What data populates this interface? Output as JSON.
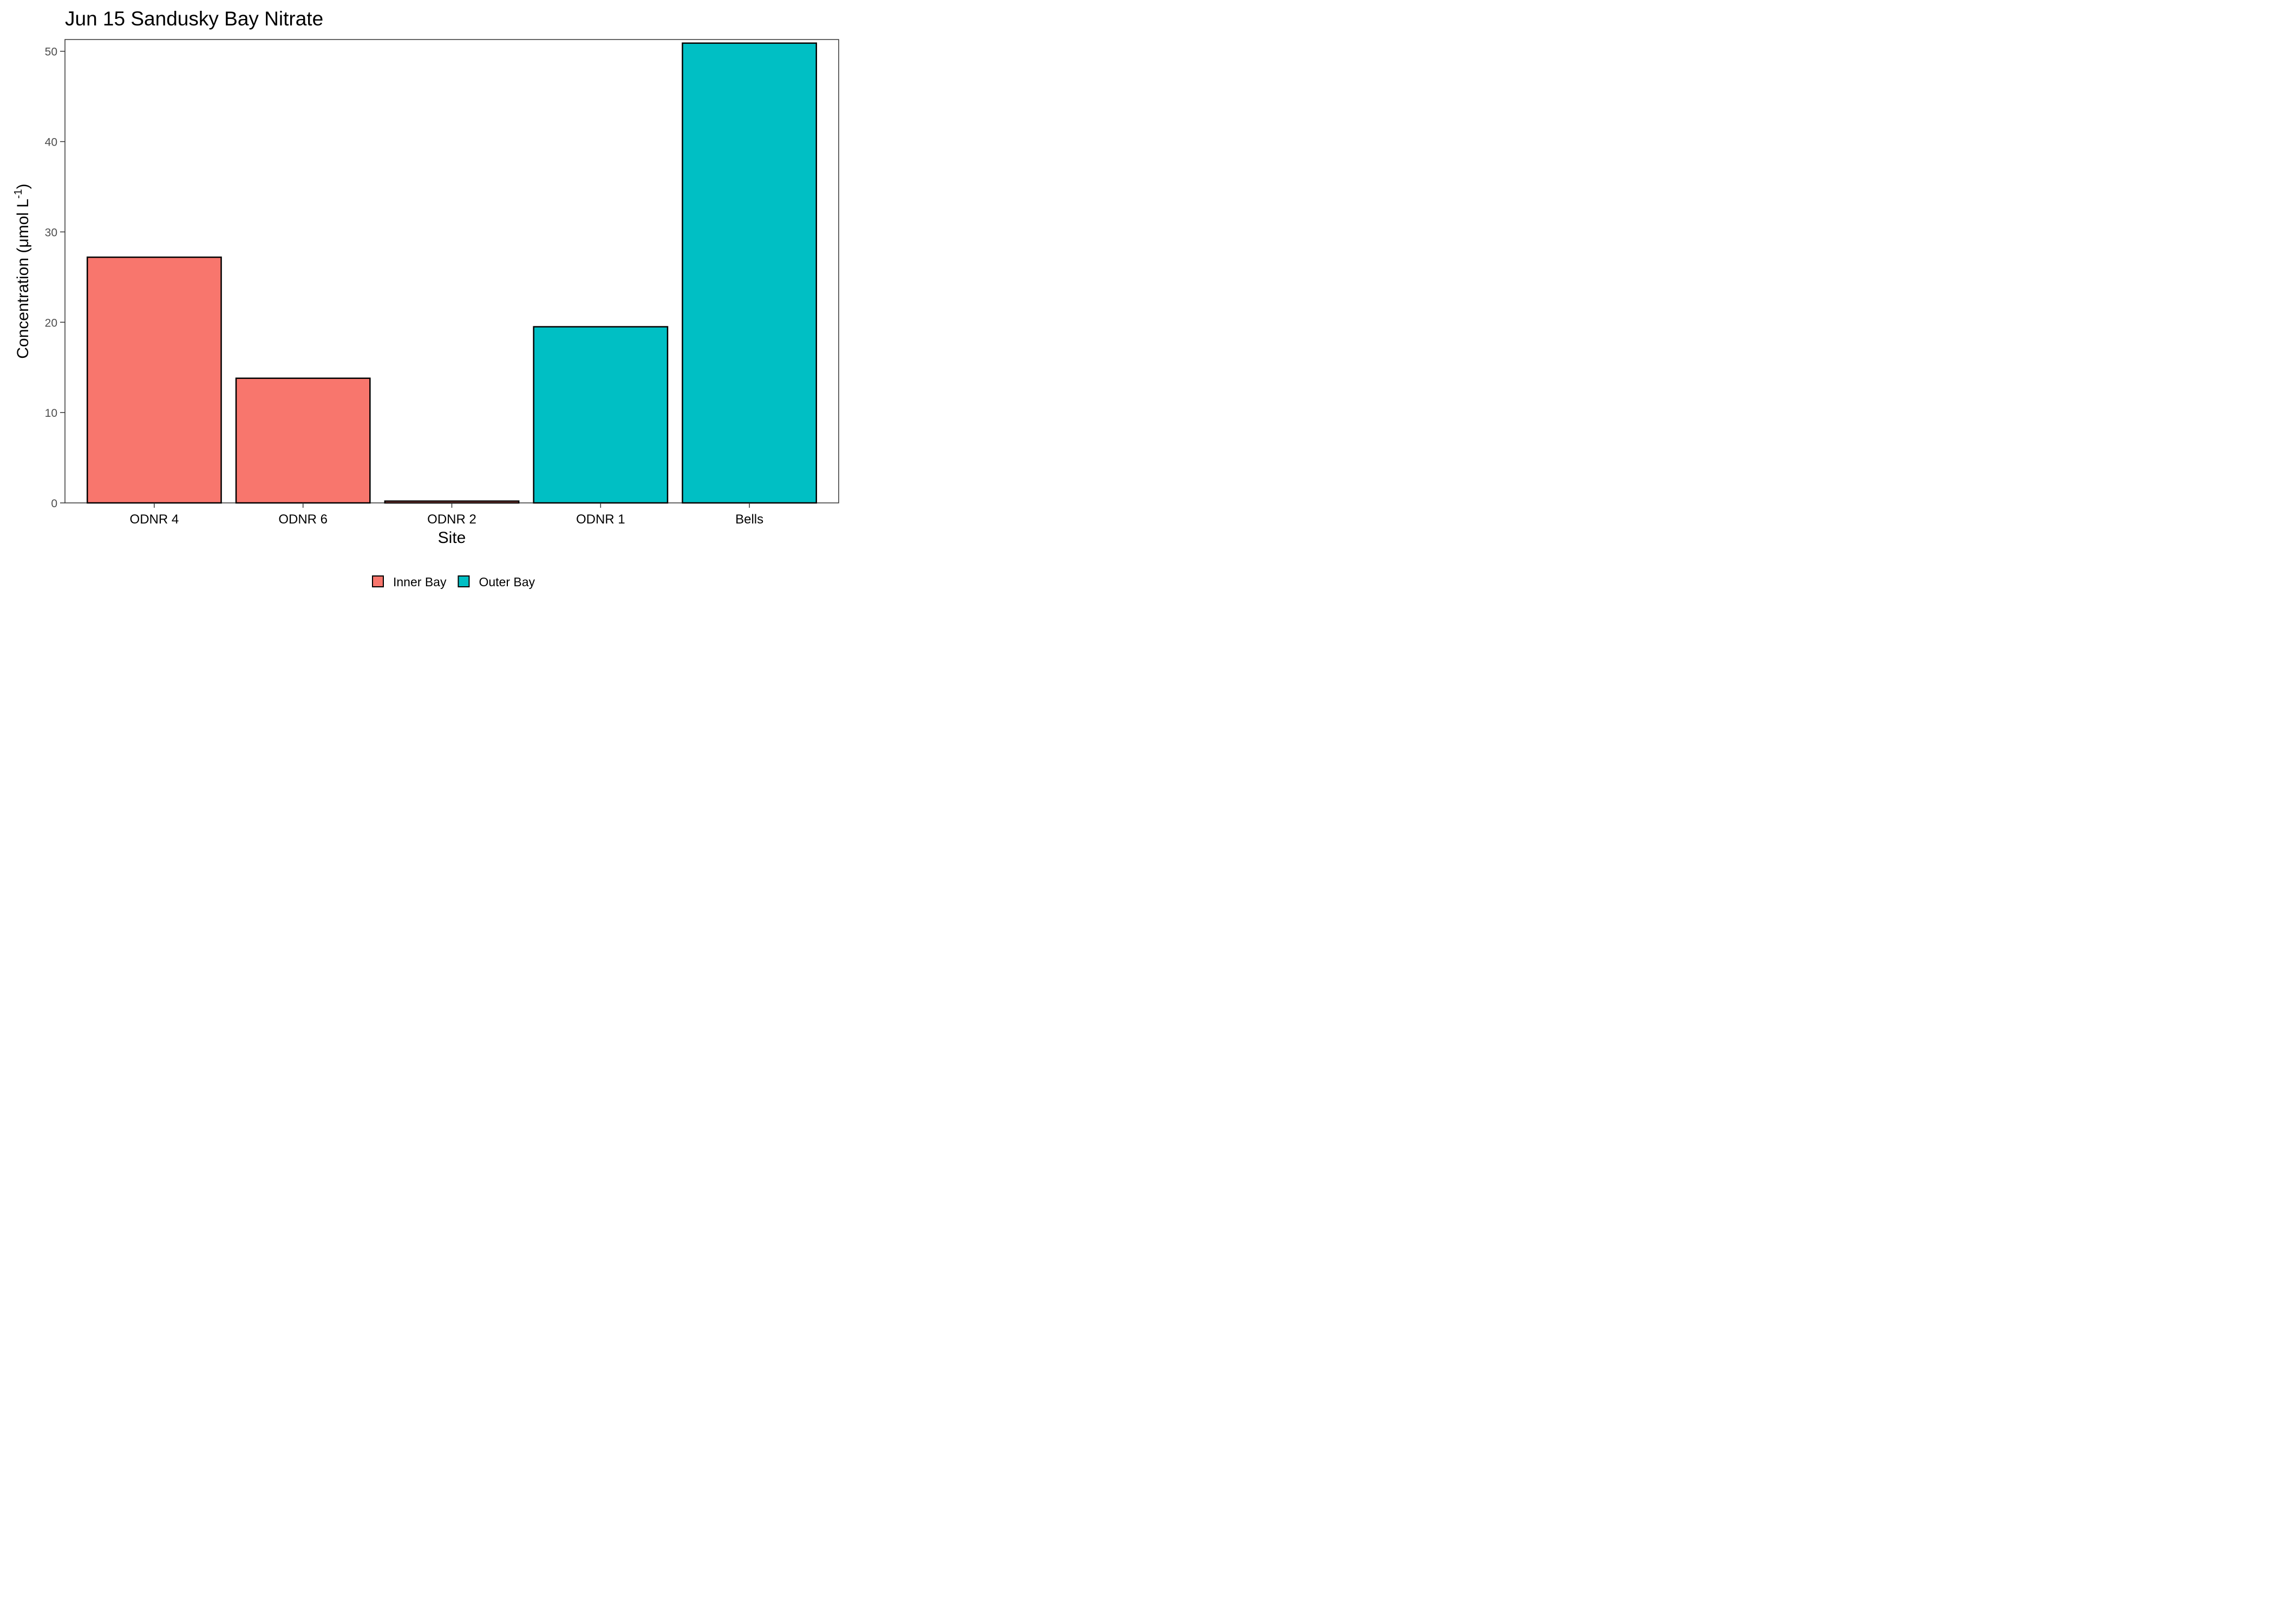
{
  "chart_data": {
    "type": "bar",
    "title": "Jun 15 Sandusky Bay Nitrate",
    "xlabel": "Site",
    "ylabel_main": "Concentration (μmol L",
    "ylabel_sup": "-1",
    "ylabel_close": ")",
    "categories": [
      "ODNR 4",
      "ODNR 6",
      "ODNR 2",
      "ODNR 1",
      "Bells"
    ],
    "values": [
      27.2,
      13.8,
      0.2,
      19.5,
      50.9
    ],
    "groups": [
      "Inner Bay",
      "Inner Bay",
      "Inner Bay",
      "Outer Bay",
      "Outer Bay"
    ],
    "ylim": [
      0,
      51.3
    ],
    "yticks": [
      0,
      10,
      20,
      30,
      40,
      50
    ],
    "grid": false,
    "legend": {
      "position": "bottom",
      "items": [
        {
          "label": "Inner Bay",
          "color": "#F8766D"
        },
        {
          "label": "Outer Bay",
          "color": "#00BFC4"
        }
      ]
    }
  }
}
